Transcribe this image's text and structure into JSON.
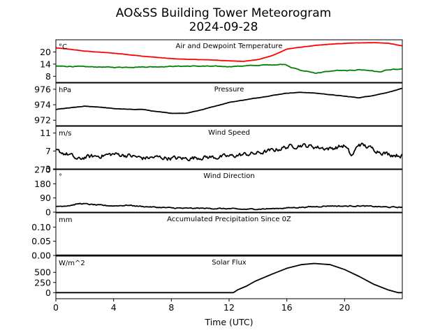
{
  "title": "AO&SS Building Tower Meteorogram",
  "subtitle": "2024-09-28",
  "xlabel": "Time (UTC)",
  "chart_data": {
    "type": "line",
    "x_range": [
      0,
      24
    ],
    "x_ticks": [
      0,
      4,
      8,
      12,
      16,
      20
    ],
    "grid": false,
    "panels": [
      {
        "id": "temp",
        "title": "Air and Dewpoint Temperature",
        "unit": "°C",
        "ylim": [
          5,
          26
        ],
        "yticks": [
          8,
          14,
          20
        ],
        "series": [
          {
            "key": "air",
            "color": "#ff0000",
            "x": [
              0,
              1,
              2,
              3,
              4,
              5,
              6,
              7,
              8,
              9,
              10,
              11,
              12,
              13,
              14,
              15,
              16,
              17,
              18,
              19,
              20,
              21,
              22,
              23,
              24
            ],
            "y": [
              22,
              21.3,
              20.4,
              19.9,
              19.4,
              18.7,
              17.9,
              17.3,
              16.7,
              16.4,
              16.2,
              16,
              15.6,
              15.4,
              16.2,
              18.2,
              21.4,
              22.4,
              23.2,
              23.8,
              24.2,
              24.5,
              24.6,
              24.3,
              23
            ]
          },
          {
            "key": "dew",
            "color": "#008000",
            "x": [
              0,
              1,
              2,
              3,
              4,
              5,
              6,
              7,
              8,
              9,
              10,
              11,
              12,
              13,
              14,
              15,
              15.9,
              16.3,
              17,
              17.5,
              18,
              18.8,
              19.5,
              20.2,
              21,
              21.8,
              22.4,
              23,
              24
            ],
            "y": [
              13,
              12.9,
              12.7,
              12.6,
              12.4,
              12.5,
              12.6,
              12.7,
              12.9,
              13,
              13,
              12.9,
              12.8,
              13.1,
              13.4,
              13.7,
              13.9,
              12.5,
              10.8,
              10.3,
              9.6,
              10.3,
              10.9,
              10.7,
              11.3,
              10.8,
              10.1,
              11.1,
              11.5
            ]
          }
        ]
      },
      {
        "id": "pressure",
        "title": "Pressure",
        "unit": "hPa",
        "ylim": [
          971.3,
          976.8
        ],
        "yticks": [
          972,
          974,
          976
        ],
        "series": [
          {
            "key": "pres",
            "color": "#000000",
            "x": [
              0,
              1,
              2,
              3,
              4,
              5,
              6,
              7,
              8,
              9,
              10,
              11,
              12,
              13,
              14,
              15,
              16,
              17,
              18,
              19,
              20,
              21,
              22,
              23,
              24
            ],
            "y": [
              973.4,
              973.6,
              973.8,
              973.7,
              973.5,
              973.4,
              973.4,
              973.1,
              972.9,
              972.9,
              973.3,
              973.8,
              974.3,
              974.6,
              974.9,
              975.2,
              975.5,
              975.6,
              975.5,
              975.3,
              975.1,
              974.9,
              975.2,
              975.6,
              976.1
            ]
          }
        ]
      },
      {
        "id": "wind",
        "title": "Wind Speed",
        "unit": "m/s",
        "ylim": [
          3,
          12.5
        ],
        "yticks": [
          3,
          7,
          11
        ],
        "series": [
          {
            "key": "ws",
            "color": "#000000",
            "noise": 0.9,
            "x": [
              0,
              1,
              1.5,
              2,
              3,
              4,
              5,
              6,
              7,
              8,
              9,
              10,
              11,
              12,
              13,
              14,
              15,
              16,
              17,
              18,
              19,
              20,
              20.5,
              21,
              22,
              23,
              24
            ],
            "y": [
              7,
              6.1,
              5,
              5.6,
              5.9,
              6.3,
              6,
              5.4,
              5.6,
              5.4,
              5.3,
              5.6,
              5.6,
              5.8,
              6.2,
              6.5,
              7.1,
              7.9,
              8.3,
              7.9,
              7.5,
              8.2,
              5.8,
              8.6,
              7.4,
              6.3,
              6
            ]
          }
        ]
      },
      {
        "id": "winddir",
        "title": "Wind Direction",
        "unit": "°",
        "ylim": [
          0,
          270
        ],
        "yticks": [
          0,
          90,
          180,
          270
        ],
        "series": [
          {
            "key": "wd",
            "color": "#000000",
            "noise": 6,
            "x": [
              0,
              1,
              1.7,
              3,
              4,
              5,
              6,
              7,
              8,
              9,
              10,
              11,
              12,
              13,
              14,
              15,
              16,
              17,
              18,
              19,
              20,
              21,
              22,
              23,
              24
            ],
            "y": [
              36,
              43,
              55,
              44,
              40,
              44,
              36,
              31,
              27,
              24,
              25,
              23,
              22,
              18,
              20,
              22,
              27,
              31,
              35,
              40,
              38,
              40,
              36,
              32,
              31
            ]
          }
        ]
      },
      {
        "id": "precip",
        "title": "Accumulated Precipitation Since 0Z",
        "unit": "mm",
        "ylim": [
          0,
          0.15
        ],
        "yticks": [
          0.0,
          0.05,
          0.1
        ],
        "ytick_labels": [
          "0.00",
          "0.05",
          "0.10"
        ],
        "series": [
          {
            "key": "precip",
            "color": "#000000",
            "x": [
              0,
              24
            ],
            "y": [
              0,
              0
            ]
          }
        ]
      },
      {
        "id": "solar",
        "title": "Solar Flux",
        "unit": "W/m^2",
        "ylim": [
          -150,
          900
        ],
        "yticks": [
          0,
          250,
          500
        ],
        "series": [
          {
            "key": "solar",
            "color": "#000000",
            "x": [
              0,
              12.3,
              12.6,
              13.2,
              13.8,
              15,
              16,
              17,
              17.9,
              19,
              20,
              21,
              22,
              23,
              23.7,
              24
            ],
            "y": [
              0,
              0,
              70,
              160,
              280,
              460,
              600,
              690,
              720,
              690,
              570,
              400,
              210,
              70,
              0,
              0
            ]
          }
        ]
      }
    ]
  }
}
